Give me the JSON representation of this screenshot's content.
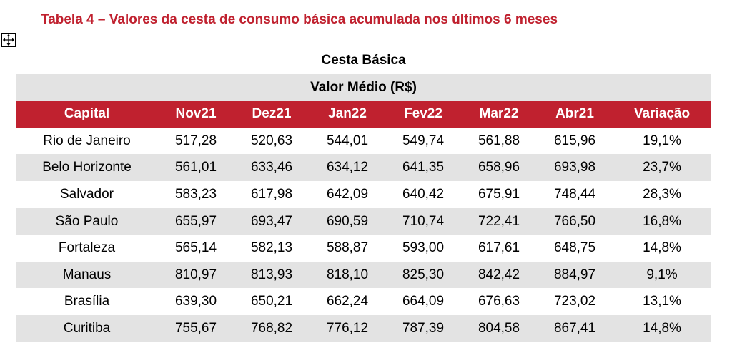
{
  "caption": "Tabela 4 – Valores da cesta de consumo básica acumulada nos últimos 6 meses",
  "handle_icon": "move-arrows-icon",
  "table": {
    "title": "Cesta Básica",
    "subtitle": "Valor Médio (R$)",
    "header_bg": "#c0212f",
    "alt_row_bg": "#e3e3e3",
    "columns": [
      "Capital",
      "Nov21",
      "Dez21",
      "Jan22",
      "Fev22",
      "Mar22",
      "Abr21",
      "Variação"
    ],
    "rows": [
      [
        "Rio de Janeiro",
        "517,28",
        "520,63",
        "544,01",
        "549,74",
        "561,88",
        "615,96",
        "19,1%"
      ],
      [
        "Belo Horizonte",
        "561,01",
        "633,46",
        "634,12",
        "641,35",
        "658,96",
        "693,98",
        "23,7%"
      ],
      [
        "Salvador",
        "583,23",
        "617,98",
        "642,09",
        "640,42",
        "675,91",
        "748,44",
        "28,3%"
      ],
      [
        "São Paulo",
        "655,97",
        "693,47",
        "690,59",
        "710,74",
        "722,41",
        "766,50",
        "16,8%"
      ],
      [
        "Fortaleza",
        "565,14",
        "582,13",
        "588,87",
        "593,00",
        "617,61",
        "648,75",
        "14,8%"
      ],
      [
        "Manaus",
        "810,97",
        "813,93",
        "818,10",
        "825,30",
        "842,42",
        "884,97",
        "9,1%"
      ],
      [
        "Brasília",
        "639,30",
        "650,21",
        "662,24",
        "664,09",
        "676,63",
        "723,02",
        "13,1%"
      ],
      [
        "Curitiba",
        "755,67",
        "768,82",
        "776,12",
        "787,39",
        "804,58",
        "867,41",
        "14,8%"
      ]
    ]
  }
}
